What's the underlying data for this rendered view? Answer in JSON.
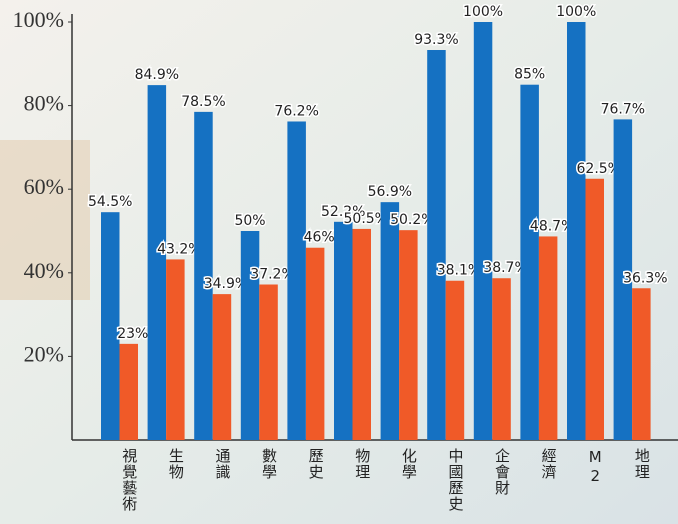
{
  "chart_data": {
    "type": "bar",
    "categories": [
      "視覺藝術",
      "生物",
      "通識",
      "數學",
      "歷史",
      "物理",
      "化學",
      "中國歷史",
      "企會財",
      "經濟",
      "M2",
      "地理"
    ],
    "series": [
      {
        "color": "#1571c2",
        "values": [
          54.5,
          84.9,
          78.5,
          50,
          76.2,
          52.2,
          56.9,
          93.3,
          100,
          85,
          100,
          76.7
        ],
        "value_labels": [
          "54.5%",
          "84.9%",
          "78.5%",
          "50%",
          "76.2%",
          "52.2%",
          "56.9%",
          "93.3%",
          "100%",
          "85%",
          "100%",
          "76.7%"
        ]
      },
      {
        "color": "#f05a28",
        "values": [
          23,
          43.2,
          34.9,
          37.2,
          46,
          50.5,
          50.2,
          38.1,
          38.7,
          48.7,
          62.5,
          36.3
        ],
        "value_labels": [
          "23%",
          "43.2%",
          "34.9%",
          "37.2%",
          "46%",
          "50.5%",
          "50.2%",
          "38.1%",
          "38.7%",
          "48.7%",
          "62.5%",
          "36.3%"
        ]
      }
    ],
    "ylim": [
      0,
      100
    ],
    "yticks": [
      {
        "value": 20,
        "label": "20%"
      },
      {
        "value": 40,
        "label": "40%"
      },
      {
        "value": 60,
        "label": "60%"
      },
      {
        "value": 80,
        "label": "80%"
      },
      {
        "value": 100,
        "label": "100%"
      }
    ]
  }
}
